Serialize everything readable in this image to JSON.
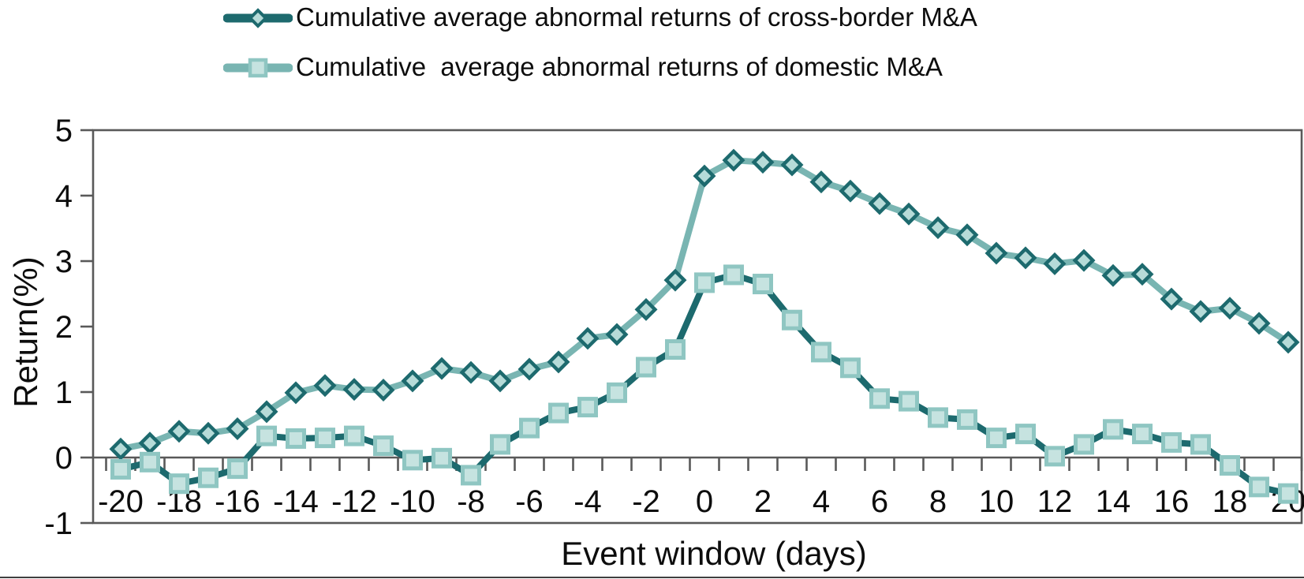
{
  "figure": {
    "xlabel": "Event window (days)",
    "ylabel": "Return(%)"
  },
  "legend": {
    "entries": [
      {
        "label": "Cumulative average abnormal returns of cross-border M&A",
        "marker": "diamond",
        "line_color": "#1d6a6e",
        "marker_fill": "#b6dbd8",
        "marker_stroke": "#1d6a6e"
      },
      {
        "label": "Cumulative  average abnormal returns of domestic M&A",
        "marker": "square",
        "line_color": "#79b5b2",
        "marker_fill": "#c6e3e0",
        "marker_stroke": "#8fc6c2"
      }
    ]
  },
  "axes": {
    "y_ticks": [
      "5",
      "4",
      "3",
      "2",
      "1",
      "0",
      "-1"
    ],
    "x_tick_labels": [
      "-20",
      "-18",
      "-16",
      "-14",
      "-12",
      "-10",
      "-8",
      "-6",
      "-4",
      "-2",
      "0",
      "2",
      "4",
      "6",
      "8",
      "10",
      "12",
      "14",
      "16",
      "18",
      "20"
    ],
    "axis_color": "#595959",
    "text_color": "#0d0d0d"
  },
  "chart_data": {
    "type": "line",
    "title": "",
    "xlabel": "Event window (days)",
    "ylabel": "Return(%)",
    "ylim": [
      -1,
      5
    ],
    "xlim": [
      -20,
      20
    ],
    "grid": false,
    "legend_position": "top",
    "x": [
      -20,
      -19,
      -18,
      -17,
      -16,
      -15,
      -14,
      -13,
      -12,
      -11,
      -10,
      -9,
      -8,
      -7,
      -6,
      -5,
      -4,
      -3,
      -2,
      -1,
      0,
      1,
      2,
      3,
      4,
      5,
      6,
      7,
      8,
      9,
      10,
      11,
      12,
      13,
      14,
      15,
      16,
      17,
      18,
      19,
      20
    ],
    "series": [
      {
        "name": "Cumulative average abnormal returns of cross-border M&A",
        "marker": "diamond",
        "line_color": "#79b5b2",
        "marker_fill": "#b6dbd8",
        "marker_stroke": "#1d6a6e",
        "values": [
          0.13,
          0.22,
          0.4,
          0.37,
          0.44,
          0.7,
          0.99,
          1.1,
          1.04,
          1.03,
          1.17,
          1.36,
          1.3,
          1.17,
          1.35,
          1.46,
          1.82,
          1.88,
          2.26,
          2.71,
          4.3,
          4.54,
          4.51,
          4.47,
          4.21,
          4.07,
          3.88,
          3.72,
          3.51,
          3.4,
          3.12,
          3.05,
          2.96,
          3.01,
          2.78,
          2.8,
          2.42,
          2.23,
          2.28,
          2.05,
          1.76
        ]
      },
      {
        "name": "Cumulative  average abnormal returns of domestic M&A",
        "marker": "square",
        "line_color": "#1d6a6e",
        "marker_fill": "#c6e3e0",
        "marker_stroke": "#8fc6c2",
        "values": [
          -0.18,
          -0.07,
          -0.4,
          -0.31,
          -0.17,
          0.33,
          0.29,
          0.3,
          0.33,
          0.18,
          -0.04,
          -0.01,
          -0.27,
          0.2,
          0.45,
          0.68,
          0.77,
          0.99,
          1.38,
          1.65,
          2.67,
          2.79,
          2.65,
          2.1,
          1.61,
          1.37,
          0.9,
          0.86,
          0.61,
          0.58,
          0.3,
          0.36,
          0.02,
          0.2,
          0.43,
          0.36,
          0.23,
          0.2,
          -0.12,
          -0.45,
          -0.55
        ]
      }
    ]
  }
}
